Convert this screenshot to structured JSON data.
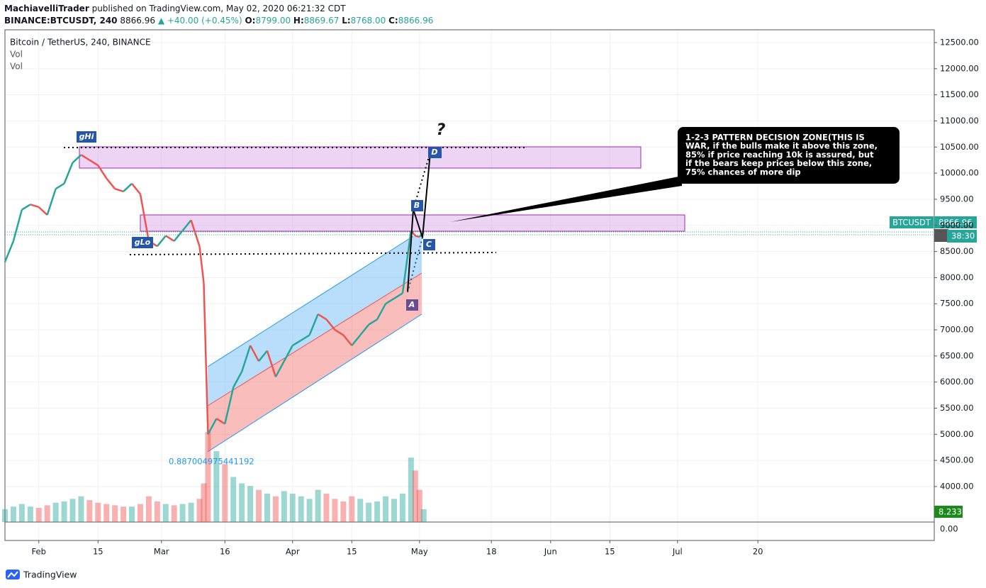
{
  "header": {
    "author": "MachiavelliTrader",
    "published": "published on TradingView.com, May 02, 2020 06:21:32 CDT",
    "symbol": "BINANCE:BTCUSDT, 240",
    "last": "8866.96",
    "change": "▲ +40.00 (+0.45%)",
    "open_label": "O:",
    "open": "8799.00",
    "high_label": "H:",
    "high": "8869.67",
    "low_label": "L:",
    "low": "8768.00",
    "close_label": "C:",
    "close": "8866.96"
  },
  "legend": {
    "instrument": "Bitcoin / TetherUS, 240, BINANCE",
    "vol1": "Vol",
    "vol2": "Vol"
  },
  "annotations": {
    "ghi": "gHi",
    "glo": "gLo",
    "a": "A",
    "b": "B",
    "c": "C",
    "d": "D",
    "question": "?",
    "fib": "0.887004975441192",
    "callout": [
      "1-2-3 PATTERN DECISION ZONE(THIS IS",
      "WAR, if the bulls make it above this zone,",
      "85% if price reaching 10k is assured, but",
      "if the bears keep prices below this zone,",
      "75% chances of more dip"
    ]
  },
  "price_tags": {
    "symbol": "BTCUSDT",
    "price": "8866.96",
    "countdown": "38:30",
    "volume": "8.233K",
    "vol_zero": "0.00"
  },
  "footer": {
    "brand": "TradingView"
  },
  "chart_data": {
    "type": "line",
    "x": [
      -8,
      -6,
      -4,
      -2,
      0,
      2,
      4,
      6,
      8,
      10,
      12,
      14,
      16,
      18,
      20,
      22,
      24,
      26,
      28,
      30,
      32,
      34,
      36,
      38,
      39,
      40,
      42,
      44,
      46,
      48,
      50,
      52,
      54,
      56,
      58,
      60,
      62,
      64,
      66,
      68,
      70,
      72,
      74,
      76,
      78,
      80,
      82,
      84,
      86,
      88,
      89,
      90,
      91
    ],
    "series": [
      {
        "color": "#26a69a",
        "down_color": "#ef5350",
        "values": [
          8300,
          8700,
          9300,
          9400,
          9350,
          9200,
          9700,
          9800,
          10200,
          10350,
          10250,
          10150,
          9900,
          9700,
          9650,
          9800,
          9600,
          8700,
          8600,
          8800,
          8700,
          8900,
          9100,
          8600,
          7900,
          5000,
          5300,
          5200,
          5900,
          6200,
          6700,
          6400,
          6600,
          6100,
          6400,
          6700,
          6800,
          6900,
          7300,
          7200,
          7000,
          6900,
          6700,
          6900,
          7100,
          7200,
          7500,
          7600,
          7700,
          8900,
          8800,
          8780,
          8867
        ]
      }
    ],
    "volume": [
      10,
      12,
      14,
      12,
      11,
      13,
      15,
      16,
      18,
      20,
      17,
      15,
      14,
      13,
      12,
      12,
      14,
      20,
      16,
      14,
      13,
      14,
      15,
      18,
      30,
      70,
      55,
      45,
      35,
      30,
      28,
      25,
      22,
      20,
      24,
      22,
      20,
      18,
      25,
      22,
      18,
      16,
      20,
      18,
      15,
      16,
      20,
      18,
      22,
      50,
      40,
      25,
      10
    ],
    "volume_ylim": [
      0,
      60
    ],
    "xlim": [
      -8,
      211.7
    ],
    "xticks": [
      {
        "value": 0,
        "label": "Feb"
      },
      {
        "value": 14,
        "label": "15"
      },
      {
        "value": 29,
        "label": "Mar"
      },
      {
        "value": 44,
        "label": "16"
      },
      {
        "value": 60,
        "label": "Apr"
      },
      {
        "value": 74,
        "label": "15"
      },
      {
        "value": 90,
        "label": "May"
      },
      {
        "value": 107,
        "label": "18"
      },
      {
        "value": 121,
        "label": "Jun"
      },
      {
        "value": 135,
        "label": "15"
      },
      {
        "value": 151,
        "label": "Jul"
      },
      {
        "value": 170,
        "label": "20"
      }
    ],
    "ylim": [
      3320,
      12745
    ],
    "yticks": [
      {
        "value": 12500,
        "label": "12500.00"
      },
      {
        "value": 12000,
        "label": "12000.00"
      },
      {
        "value": 11500,
        "label": "11500.00"
      },
      {
        "value": 11000,
        "label": "11000.00"
      },
      {
        "value": 10500,
        "label": "10500.00"
      },
      {
        "value": 10000,
        "label": "10000.00"
      },
      {
        "value": 9500,
        "label": "9500.00"
      },
      {
        "value": 9000,
        "label": "9000.00"
      },
      {
        "value": 8500,
        "label": "8500.00"
      },
      {
        "value": 8000,
        "label": "8000.00"
      },
      {
        "value": 7500,
        "label": "7500.00"
      },
      {
        "value": 7000,
        "label": "7000.00"
      },
      {
        "value": 6500,
        "label": "6500.00"
      },
      {
        "value": 6000,
        "label": "6000.00"
      },
      {
        "value": 5500,
        "label": "5500.00"
      },
      {
        "value": 5000,
        "label": "5000.00"
      },
      {
        "value": 4500,
        "label": "4500.00"
      },
      {
        "value": 4000,
        "label": "4000.00"
      }
    ],
    "grid": true
  }
}
